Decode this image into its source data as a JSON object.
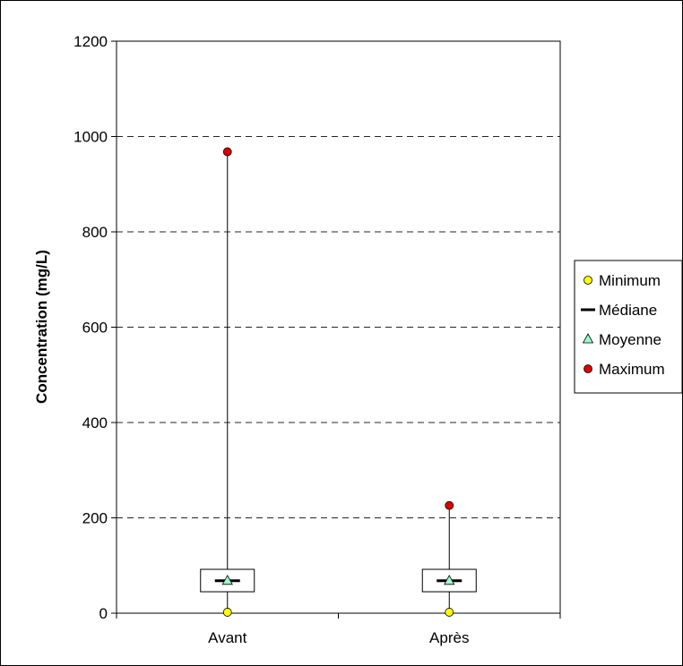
{
  "chart_data": {
    "type": "box",
    "ylabel": "Concentration (mg/L)",
    "ylim": [
      0,
      1200
    ],
    "yticks": [
      0,
      200,
      400,
      600,
      800,
      1000,
      1200
    ],
    "grid": "horizontal dashed",
    "legend_position": "right",
    "categories": [
      "Avant",
      "Après"
    ],
    "series": [
      {
        "name": "Minimum",
        "marker": "circle",
        "color": "#ffff00",
        "values": [
          2,
          2
        ]
      },
      {
        "name": "Médiane",
        "marker": "dash",
        "color": "#000000",
        "values": [
          68,
          68
        ]
      },
      {
        "name": "Moyenne",
        "marker": "triangle",
        "color": "#99ffcc",
        "values": [
          68,
          68
        ]
      },
      {
        "name": "Maximum",
        "marker": "circle",
        "color": "#dd0000",
        "values": [
          968,
          226
        ]
      }
    ],
    "box_quartiles": [
      {
        "q1": 45,
        "q3": 92
      },
      {
        "q1": 45,
        "q3": 92
      }
    ]
  }
}
